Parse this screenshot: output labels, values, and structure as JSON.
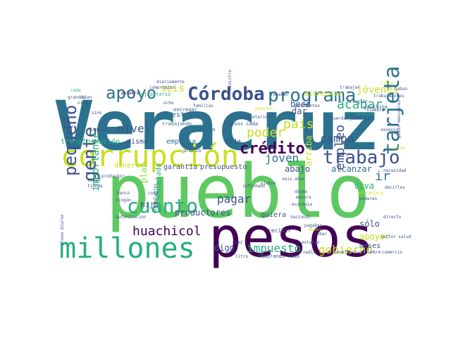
{
  "palette": {
    "purple": "#440154",
    "indigo": "#3b528b",
    "teal": "#21918c",
    "green": "#5ec962",
    "lime": "#c8e020",
    "yellow": "#fde725",
    "bluegreen": "#2c728e",
    "seagreen": "#27ad81",
    "lightgreen": "#90d743"
  },
  "words": [
    {
      "id": "veracruz",
      "text": "Veracruz",
      "color": "bluegreen"
    },
    {
      "id": "pueblo",
      "text": "pueblo",
      "color": "green"
    },
    {
      "id": "pesos",
      "text": "pesos",
      "color": "purple"
    },
    {
      "id": "corrupcion",
      "text": "corrupción",
      "color": "lime"
    },
    {
      "id": "millones",
      "text": "millones",
      "color": "seagreen"
    },
    {
      "id": "programa",
      "text": "programa",
      "color": "bluegreen"
    },
    {
      "id": "cordoba",
      "text": "Córdoba",
      "color": "indigo"
    },
    {
      "id": "apoyo",
      "text": "apoyo",
      "color": "bluegreen"
    },
    {
      "id": "trabajo",
      "text": "trabajo",
      "color": "indigo"
    },
    {
      "id": "credito",
      "text": "crédito",
      "color": "purple"
    },
    {
      "id": "tarjeta",
      "text": "tarjeta",
      "color": "bluegreen"
    },
    {
      "id": "pequeno",
      "text": "pequeño",
      "color": "indigo"
    },
    {
      "id": "cuanto",
      "text": "cuánto",
      "color": "seagreen"
    },
    {
      "id": "gente",
      "text": "gente",
      "color": "indigo"
    },
    {
      "id": "jovenes",
      "text": "jóvenes",
      "color": "lime"
    },
    {
      "id": "pais",
      "text": "país",
      "color": "lime"
    },
    {
      "id": "poder",
      "text": "poder",
      "color": "lime"
    },
    {
      "id": "nivel",
      "text": "nivel",
      "color": "indigo"
    },
    {
      "id": "seis",
      "text": "seis",
      "color": "lime"
    },
    {
      "id": "joven",
      "text": "joven",
      "color": "bluegreen"
    },
    {
      "id": "campo",
      "text": "campo",
      "color": "indigo"
    },
    {
      "id": "acabar",
      "text": "acabar",
      "color": "seagreen"
    },
    {
      "id": "huachicol",
      "text": "huachicol",
      "color": "purple"
    },
    {
      "id": "pagar",
      "text": "pagar",
      "color": "indigo"
    },
    {
      "id": "gobierno",
      "text": "gobierno",
      "color": "lime"
    },
    {
      "id": "impuesto",
      "text": "impuesto",
      "color": "seagreen"
    },
    {
      "id": "empleo",
      "text": "empleo",
      "color": "indigo"
    },
    {
      "id": "importante",
      "text": "importante",
      "color": "seagreen"
    },
    {
      "id": "transformacion",
      "text": "transformación",
      "color": "seagreen"
    },
    {
      "id": "dinero",
      "text": "dinero",
      "color": "lime"
    },
    {
      "id": "garantia",
      "text": "garantía",
      "color": "indigo"
    },
    {
      "id": "presupuesto",
      "text": "presupuesto",
      "color": "indigo"
    },
    {
      "id": "mismo",
      "text": "mismo",
      "color": "indigo"
    },
    {
      "id": "empresa",
      "text": "empresa",
      "color": "bluegreen"
    },
    {
      "id": "vida",
      "text": "vida",
      "color": "indigo"
    },
    {
      "id": "maestro",
      "text": "maestro",
      "color": "bluegreen"
    },
    {
      "id": "abajo",
      "text": "abajo",
      "color": "indigo"
    },
    {
      "id": "alcanzar",
      "text": "alcanzar",
      "color": "bluegreen"
    },
    {
      "id": "beca",
      "text": "beca",
      "color": "indigo"
    },
    {
      "id": "dar",
      "text": "dar",
      "color": "indigo"
    },
    {
      "id": "apoyar",
      "text": "apoyar",
      "color": "lime"
    },
    {
      "id": "meses",
      "text": "meses",
      "color": "indigo"
    },
    {
      "id": "digo",
      "text": "digo",
      "color": "indigo"
    },
    {
      "id": "productores",
      "text": "productores",
      "color": "indigo"
    },
    {
      "id": "tonelada",
      "text": "tonelada",
      "color": "seagreen"
    },
    {
      "id": "plan",
      "text": "plan",
      "color": "lightgreen"
    },
    {
      "id": "arriba",
      "text": "arriba",
      "color": "lime"
    },
    {
      "id": "ir",
      "text": "ir",
      "color": "bluegreen"
    },
    {
      "id": "viva",
      "text": "Viva",
      "color": "seagreen"
    },
    {
      "id": "solo",
      "text": "sólo",
      "color": "indigo"
    },
    {
      "id": "bienestar",
      "text": "bienestar",
      "color": "lime"
    },
    {
      "id": "quiera",
      "text": "quiera",
      "color": "indigo"
    },
    {
      "id": "hijo",
      "text": "hijo",
      "color": "indigo"
    },
    {
      "id": "recibir",
      "text": "recibir",
      "color": "indigo"
    },
    {
      "id": "sembrando",
      "text": "Sembrando Vida",
      "color": "indigo"
    },
    {
      "id": "precio",
      "text": "precio",
      "color": "indigo"
    },
    {
      "id": "trabajando",
      "text": "trabajando",
      "color": "bluegreen"
    },
    {
      "id": "planta",
      "text": "planta",
      "color": "bluegreen"
    },
    {
      "id": "entregar",
      "text": "entregar",
      "color": "indigo"
    },
    {
      "id": "ejidatario",
      "text": "ejidatario",
      "color": "seagreen"
    },
    {
      "id": "palabra",
      "text": "palabra",
      "color": "purple"
    },
    {
      "id": "diariamente",
      "text": "diariamente",
      "color": "indigo"
    },
    {
      "id": "compromiso",
      "text": "compromiso",
      "color": "indigo"
    },
    {
      "id": "pesos_cada",
      "text": "pesos cada",
      "color": "indigo"
    },
    {
      "id": "propietario",
      "text": "propietario",
      "color": "indigo"
    },
    {
      "id": "rebaban",
      "text": "rebaban",
      "color": "indigo"
    },
    {
      "id": "pension",
      "text": "pensión",
      "color": "lime"
    },
    {
      "id": "pendientes",
      "text": "pendientes",
      "color": "indigo"
    },
    {
      "id": "economia",
      "text": "economía",
      "color": "indigo"
    },
    {
      "id": "sector_salud",
      "text": "sector salud",
      "color": "indigo"
    },
    {
      "id": "directo",
      "text": "directo",
      "color": "indigo"
    },
    {
      "id": "necesidad",
      "text": "necesidad",
      "color": "indigo"
    },
    {
      "id": "justicia",
      "text": "justicia",
      "color": "indigo"
    },
    {
      "id": "gasolina",
      "text": "gasolina",
      "color": "indigo"
    },
    {
      "id": "trabajadores",
      "text": "trabajadores",
      "color": "indigo"
    },
    {
      "id": "libre",
      "text": "libre",
      "color": "lime"
    },
    {
      "id": "saban",
      "text": "Saban",
      "color": "indigo"
    },
    {
      "id": "siembre",
      "text": "siembre",
      "color": "indigo"
    },
    {
      "id": "region",
      "text": "región",
      "color": "indigo"
    },
    {
      "id": "terminar",
      "text": "Terminar",
      "color": "seagreen"
    },
    {
      "id": "decirles",
      "text": "decirles",
      "color": "indigo"
    },
    {
      "id": "comercio",
      "text": "comercio",
      "color": "indigo"
    },
    {
      "id": "costumbre",
      "text": "costumbre",
      "color": "indigo"
    },
    {
      "id": "beneficio",
      "text": "beneficio",
      "color": "indigo"
    },
    {
      "id": "robar",
      "text": "robar",
      "color": "indigo"
    },
    {
      "id": "seis_anos",
      "text": "seis años",
      "color": "indigo"
    },
    {
      "id": "informado",
      "text": "informado",
      "color": "indigo"
    },
    {
      "id": "estudiantes",
      "text": "estudiantes",
      "color": "indigo"
    },
    {
      "id": "banco",
      "text": "banco",
      "color": "indigo"
    },
    {
      "id": "ningun",
      "text": "ningún",
      "color": "indigo"
    },
    {
      "id": "productor",
      "text": "productor",
      "color": "indigo"
    },
    {
      "id": "tienda",
      "text": "tienda",
      "color": "indigo"
    },
    {
      "id": "autorizacion",
      "text": "autorización",
      "color": "indigo"
    },
    {
      "id": "pobre",
      "text": "pobre",
      "color": "indigo"
    },
    {
      "id": "sembrar",
      "text": "sembrar",
      "color": "indigo"
    },
    {
      "id": "grandes",
      "text": "grandes",
      "color": "indigo"
    },
    {
      "id": "nina",
      "text": "niña",
      "color": "indigo"
    },
    {
      "id": "bien",
      "text": "bien",
      "color": "indigo"
    },
    {
      "id": "sino",
      "text": "sino",
      "color": "indigo"
    },
    {
      "id": "cada",
      "text": "cada",
      "color": "seagreen"
    },
    {
      "id": "familias",
      "text": "familias",
      "color": "indigo"
    },
    {
      "id": "ministro",
      "text": "ministro",
      "color": "indigo"
    },
    {
      "id": "trabajar",
      "text": "trabajar",
      "color": "indigo"
    },
    {
      "id": "acuerdo",
      "text": "acuerdo",
      "color": "indigo"
    },
    {
      "id": "litro",
      "text": "litro",
      "color": "indigo"
    },
    {
      "id": "nietos",
      "text": "nietos",
      "color": "indigo"
    },
    {
      "id": "donde",
      "text": "dónde",
      "color": "indigo"
    },
    {
      "id": "manera",
      "text": "manera",
      "color": "indigo"
    },
    {
      "id": "ocho",
      "text": "ocho",
      "color": "indigo"
    },
    {
      "id": "nacional",
      "text": "nacional",
      "color": "indigo"
    },
    {
      "id": "pagaban",
      "text": "pagaban",
      "color": "indigo"
    },
    {
      "id": "estaban",
      "text": "estaban",
      "color": "indigo"
    },
    {
      "id": "nadie",
      "text": "nadie",
      "color": "indigo"
    },
    {
      "id": "menos",
      "text": "menos",
      "color": "lime"
    },
    {
      "id": "pesos_mensuales",
      "text": "pesos mensuales",
      "color": "indigo"
    },
    {
      "id": "semento",
      "text": "sesenio",
      "color": "indigo"
    },
    {
      "id": "llega",
      "text": "llega",
      "color": "indigo"
    },
    {
      "id": "cosa",
      "text": "cosa",
      "color": "indigo"
    },
    {
      "id": "diez",
      "text": "diez",
      "color": "indigo"
    },
    {
      "id": "pleno_diurno",
      "text": "pleno diurno",
      "color": "indigo"
    },
    {
      "id": "extranjero",
      "text": "extranjero",
      "color": "lime"
    },
    {
      "id": "poderes",
      "text": "poderes",
      "color": "indigo"
    },
    {
      "id": "salud",
      "text": "salud",
      "color": "lime"
    }
  ]
}
